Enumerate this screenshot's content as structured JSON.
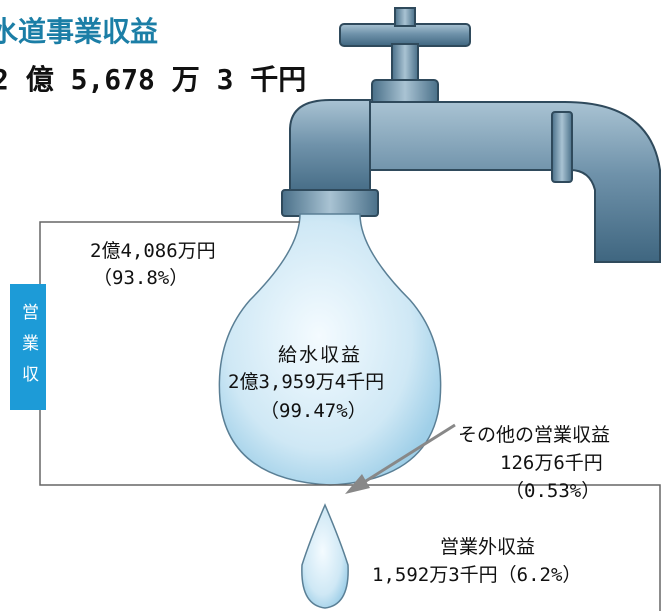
{
  "header": {
    "title": "水道事業収益",
    "total": "2 億 5,678 万 3 千円"
  },
  "operating": {
    "label": "営業収益",
    "amount": "2億4,086万円",
    "share": "（93.8%）"
  },
  "water_supply": {
    "label": "給水収益",
    "amount": "2億3,959万4千円",
    "share": "（99.47%）"
  },
  "other_operating": {
    "label": "その他の営業収益",
    "amount": "126万6千円",
    "share": "（0.53%）"
  },
  "non_operating": {
    "label": "営業外収益",
    "amount": "1,592万3千円（6.2%）"
  }
}
